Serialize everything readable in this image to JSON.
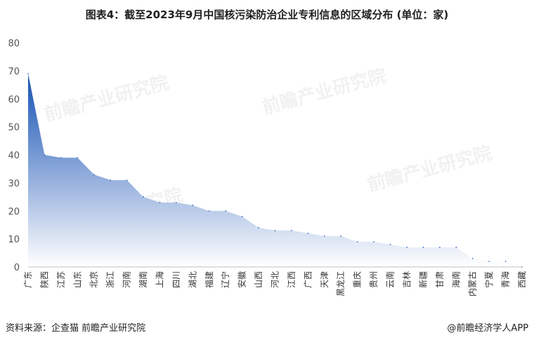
{
  "title": "图表4：截至2023年9月中国核污染防治企业专利信息的区域分布 (单位：家)",
  "source": "资料来源：企查猫 前瞻产业研究院",
  "brand": "@前瞻经济学人APP",
  "watermark": "前瞻产业研究院",
  "colors": {
    "area_top": "#1450b4",
    "area_bottom": "#ffffff"
  },
  "chart_data": {
    "type": "area",
    "categories": [
      "广东",
      "陕西",
      "江苏",
      "山东",
      "北京",
      "浙江",
      "河南",
      "湖南",
      "上海",
      "四川",
      "湖北",
      "福建",
      "辽宁",
      "安徽",
      "山西",
      "河北",
      "江西",
      "广西",
      "天津",
      "黑龙江",
      "重庆",
      "贵州",
      "云南",
      "吉林",
      "新疆",
      "甘肃",
      "海南",
      "内蒙古",
      "宁夏",
      "青海",
      "西藏"
    ],
    "values": [
      69,
      40,
      39,
      39,
      33,
      31,
      31,
      25,
      23,
      23,
      22,
      20,
      20,
      18,
      14,
      13,
      13,
      12,
      11,
      11,
      9,
      9,
      8,
      7,
      7,
      7,
      7,
      3,
      2,
      2,
      0
    ],
    "ylim": [
      0,
      80
    ],
    "yticks": [
      0,
      10,
      20,
      30,
      40,
      50,
      60,
      70,
      80
    ],
    "xlabel": "",
    "ylabel": "",
    "grid": false,
    "legend": "none"
  }
}
